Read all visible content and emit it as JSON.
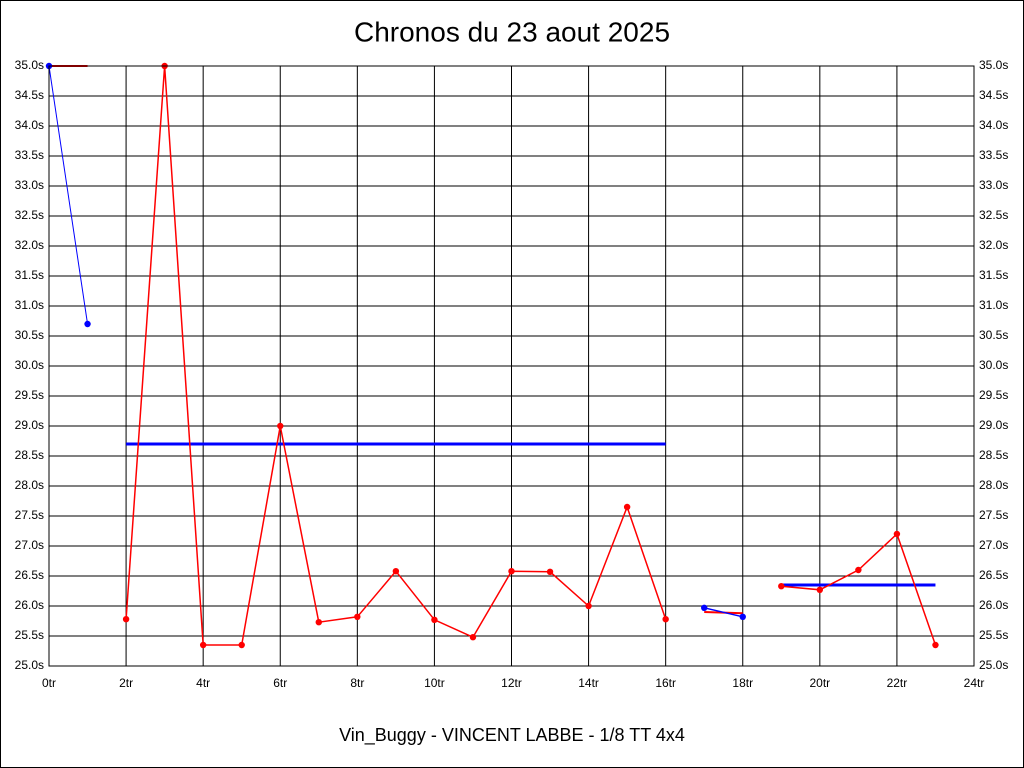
{
  "chart_data": {
    "type": "line",
    "title": "Chronos du 23 aout 2025",
    "x_label": "Vin_Buggy - VINCENT LABBE - 1/8 TT 4x4",
    "xlim": [
      0,
      24
    ],
    "xticks": [
      {
        "value": 0,
        "label": "0tr"
      },
      {
        "value": 2,
        "label": "2tr"
      },
      {
        "value": 4,
        "label": "4tr"
      },
      {
        "value": 6,
        "label": "6tr"
      },
      {
        "value": 8,
        "label": "8tr"
      },
      {
        "value": 10,
        "label": "10tr"
      },
      {
        "value": 12,
        "label": "12tr"
      },
      {
        "value": 14,
        "label": "14tr"
      },
      {
        "value": 16,
        "label": "16tr"
      },
      {
        "value": 18,
        "label": "18tr"
      },
      {
        "value": 20,
        "label": "20tr"
      },
      {
        "value": 22,
        "label": "22tr"
      },
      {
        "value": 24,
        "label": "24tr"
      }
    ],
    "ylim": [
      25,
      35
    ],
    "yticks": [
      {
        "value": 25,
        "label": "25.0s"
      },
      {
        "value": 25.5,
        "label": "25.5s"
      },
      {
        "value": 26,
        "label": "26.0s"
      },
      {
        "value": 26.5,
        "label": "26.5s"
      },
      {
        "value": 27,
        "label": "27.0s"
      },
      {
        "value": 27.5,
        "label": "27.5s"
      },
      {
        "value": 28,
        "label": "28.0s"
      },
      {
        "value": 28.5,
        "label": "28.5s"
      },
      {
        "value": 29,
        "label": "29.0s"
      },
      {
        "value": 29.5,
        "label": "29.5s"
      },
      {
        "value": 30,
        "label": "30.0s"
      },
      {
        "value": 30.5,
        "label": "30.5s"
      },
      {
        "value": 31,
        "label": "31.0s"
      },
      {
        "value": 31.5,
        "label": "31.5s"
      },
      {
        "value": 32,
        "label": "32.0s"
      },
      {
        "value": 32.5,
        "label": "32.5s"
      },
      {
        "value": 33,
        "label": "33.0s"
      },
      {
        "value": 33.5,
        "label": "33.5s"
      },
      {
        "value": 34,
        "label": "34.0s"
      },
      {
        "value": 34.5,
        "label": "34.5s"
      },
      {
        "value": 35,
        "label": "35.0s"
      }
    ],
    "grid": true,
    "series": [
      {
        "color": "#ff0000",
        "width": 2,
        "markers": false,
        "x": [
          0,
          1
        ],
        "values": [
          35,
          35
        ]
      },
      {
        "color": "#0000ff",
        "width": 1,
        "markers": true,
        "x": [
          0,
          1
        ],
        "values": [
          35,
          30.7
        ]
      },
      {
        "color": "#0000ff",
        "width": 3,
        "markers": false,
        "x": [
          2,
          16
        ],
        "values": [
          28.7,
          28.7
        ]
      },
      {
        "color": "#ff0000",
        "width": 1.5,
        "markers": true,
        "x": [
          2,
          3,
          4,
          5,
          6,
          7,
          8,
          9,
          10,
          11,
          12,
          13,
          14,
          15,
          16
        ],
        "values": [
          25.78,
          35,
          25.35,
          25.35,
          29.0,
          25.73,
          25.82,
          26.58,
          25.77,
          25.48,
          26.58,
          26.57,
          26.0,
          27.65,
          25.78
        ]
      },
      {
        "color": "#ff0000",
        "width": 2,
        "markers": false,
        "x": [
          17,
          18
        ],
        "values": [
          25.9,
          25.88
        ]
      },
      {
        "color": "#0000ff",
        "width": 1.5,
        "markers": true,
        "x": [
          17,
          18
        ],
        "values": [
          25.97,
          25.82
        ]
      },
      {
        "color": "#0000ff",
        "width": 3,
        "markers": false,
        "x": [
          19,
          23
        ],
        "values": [
          26.35,
          26.35
        ]
      },
      {
        "color": "#ff0000",
        "width": 1.5,
        "markers": true,
        "x": [
          19,
          20,
          21,
          22,
          23
        ],
        "values": [
          26.33,
          26.27,
          26.6,
          27.2,
          25.35
        ]
      }
    ]
  }
}
